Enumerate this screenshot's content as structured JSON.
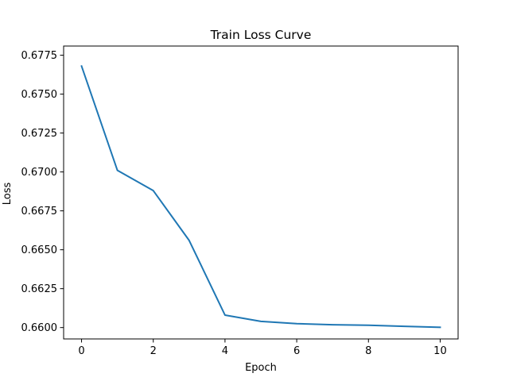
{
  "chart_data": {
    "type": "line",
    "title": "Train Loss Curve",
    "xlabel": "Epoch",
    "ylabel": "Loss",
    "xlim": [
      -0.5,
      10.5
    ],
    "ylim": [
      0.65927,
      0.67809
    ],
    "xticks": [
      0,
      2,
      4,
      6,
      8,
      10
    ],
    "xtick_labels": [
      "0",
      "2",
      "4",
      "6",
      "8",
      "10"
    ],
    "yticks": [
      0.66,
      0.6625,
      0.665,
      0.6675,
      0.67,
      0.6725,
      0.675,
      0.6775
    ],
    "ytick_labels": [
      "0.6600",
      "0.6625",
      "0.6650",
      "0.6675",
      "0.6700",
      "0.6725",
      "0.6750",
      "0.6775"
    ],
    "grid": false,
    "series": [
      {
        "color": "#1f77b4",
        "x": [
          0,
          1,
          2,
          3,
          4,
          5,
          6,
          7,
          8,
          9,
          10
        ],
        "values": [
          0.6768,
          0.6701,
          0.6688,
          0.6656,
          0.6608,
          0.6604,
          0.66025,
          0.66018,
          0.66015,
          0.66008,
          0.66002
        ]
      }
    ]
  }
}
